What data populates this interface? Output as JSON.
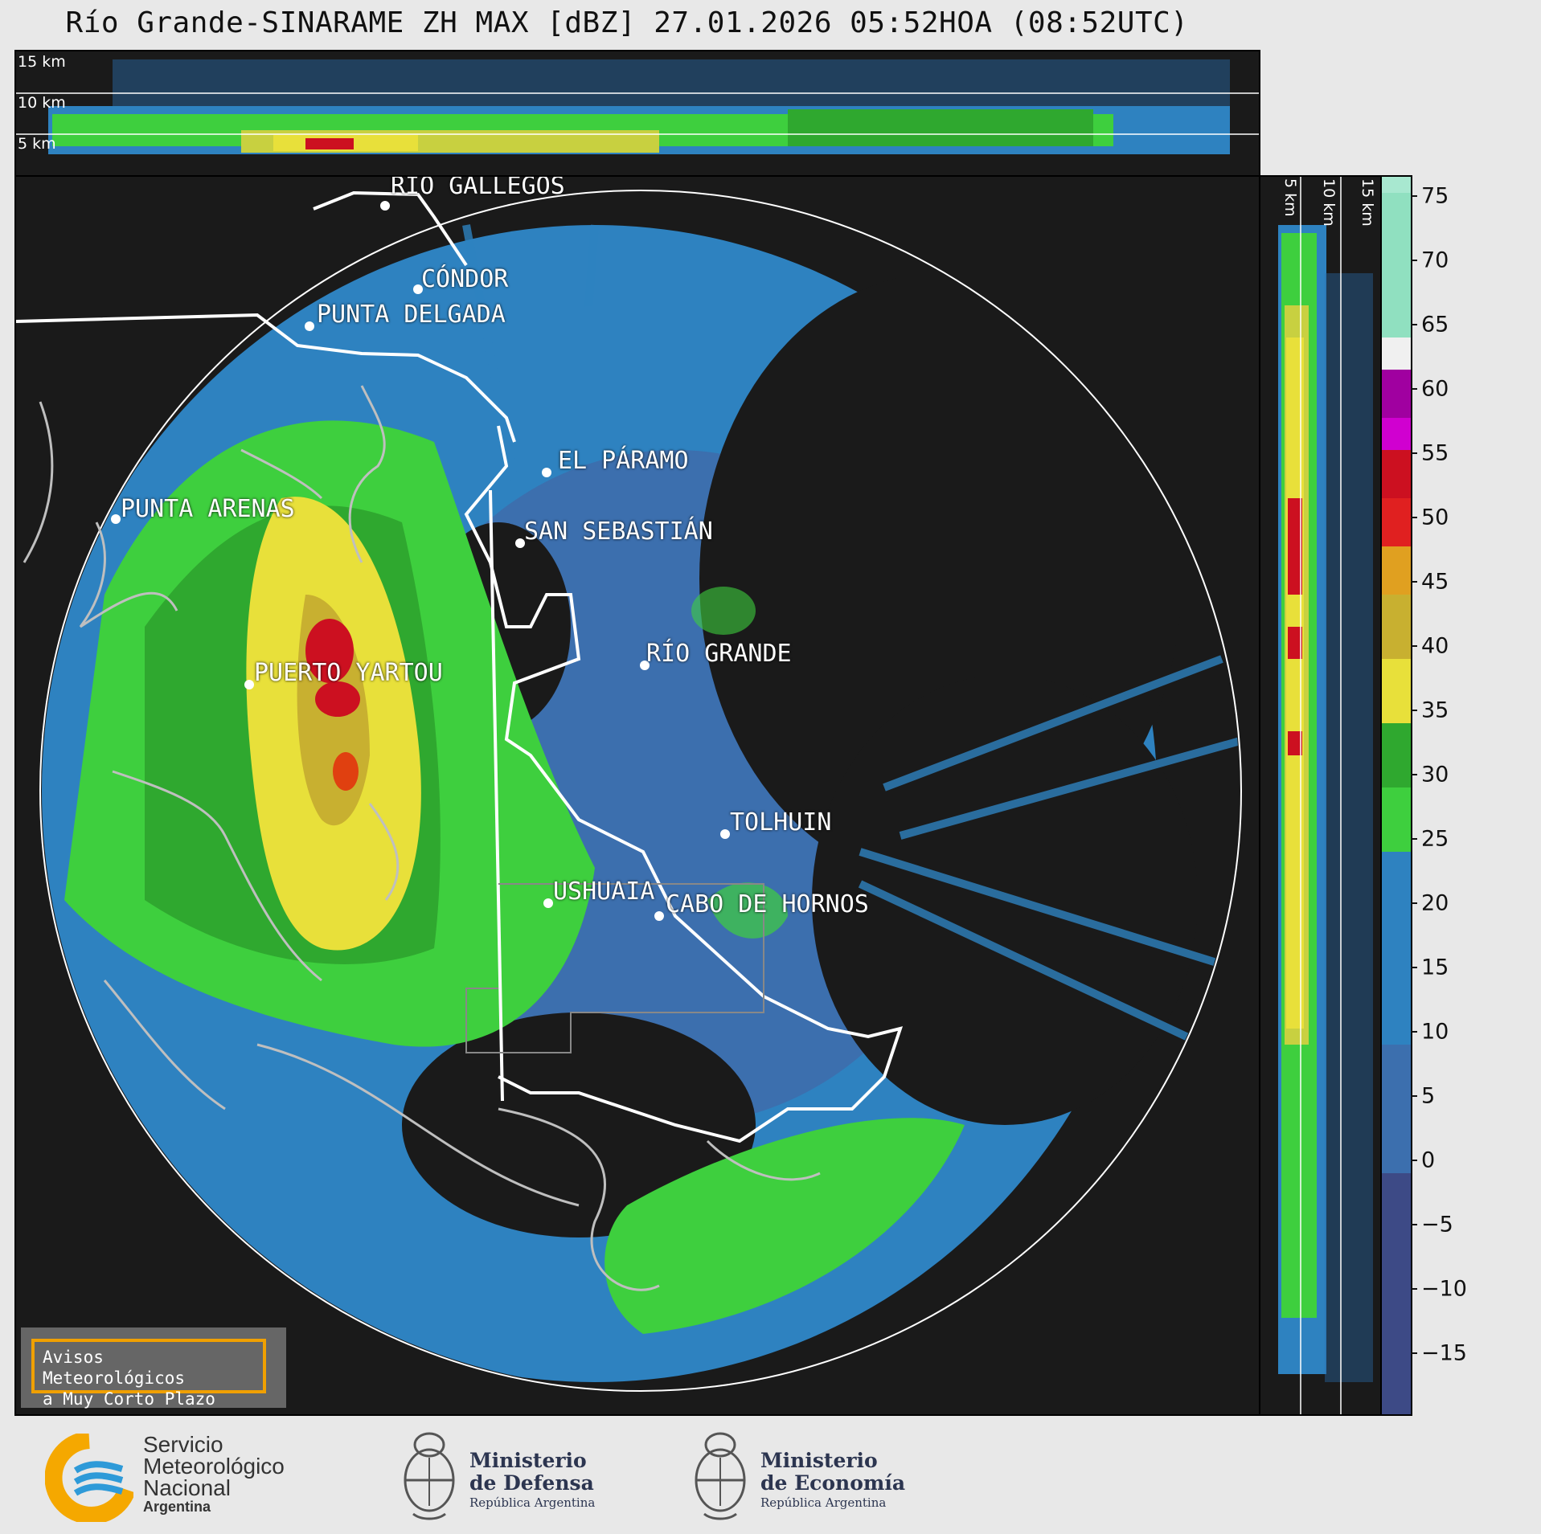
{
  "title": "Río Grande-SINARAME ZH MAX [dBZ] 27.01.2026 05:52HOA (08:52UTC)",
  "top_panel": {
    "height_labels": [
      "15 km",
      "10 km",
      "5 km"
    ]
  },
  "side_panel": {
    "height_labels": [
      "5 km",
      "10 km",
      "15 km"
    ]
  },
  "cities": [
    {
      "name": "RÍO GALLEGOS"
    },
    {
      "name": "CÓNDOR"
    },
    {
      "name": "PUNTA DELGADA"
    },
    {
      "name": "EL PÁRAMO"
    },
    {
      "name": "PUNTA ARENAS"
    },
    {
      "name": "SAN SEBASTIÁN"
    },
    {
      "name": "RÍO GRANDE"
    },
    {
      "name": "PUERTO YARTOU"
    },
    {
      "name": "TOLHUIN"
    },
    {
      "name": "USHUAIA"
    },
    {
      "name": "CABO DE HORNOS"
    }
  ],
  "colorbar": {
    "unit": "dBZ",
    "ticks": [
      "75",
      "70",
      "65",
      "60",
      "55",
      "50",
      "45",
      "40",
      "35",
      "30",
      "25",
      "20",
      "15",
      "10",
      "5",
      "0",
      "−5",
      "−10",
      "−15"
    ],
    "colors": {
      "band_below_0": "#3d4a86",
      "band_0_17": "#2e82c0",
      "band_17_30": "#3ecf3e",
      "band_30_42": "#e8e03a",
      "band_42_50": "#cc1020",
      "band_50_58": "#d000d0",
      "band_60_plus": "#90e0c0"
    }
  },
  "notice": {
    "line1": "Avisos Meteorológicos",
    "line2": "a Muy Corto Plazo"
  },
  "footer": {
    "smn": {
      "line1": "Servicio",
      "line2": "Meteorológico",
      "line3": "Nacional",
      "line4": "Argentina"
    },
    "defensa": {
      "line1": "Ministerio",
      "line2": "de Defensa",
      "line3": "República Argentina"
    },
    "economia": {
      "line1": "Ministerio",
      "line2": "de Economía",
      "line3": "República Argentina"
    }
  }
}
